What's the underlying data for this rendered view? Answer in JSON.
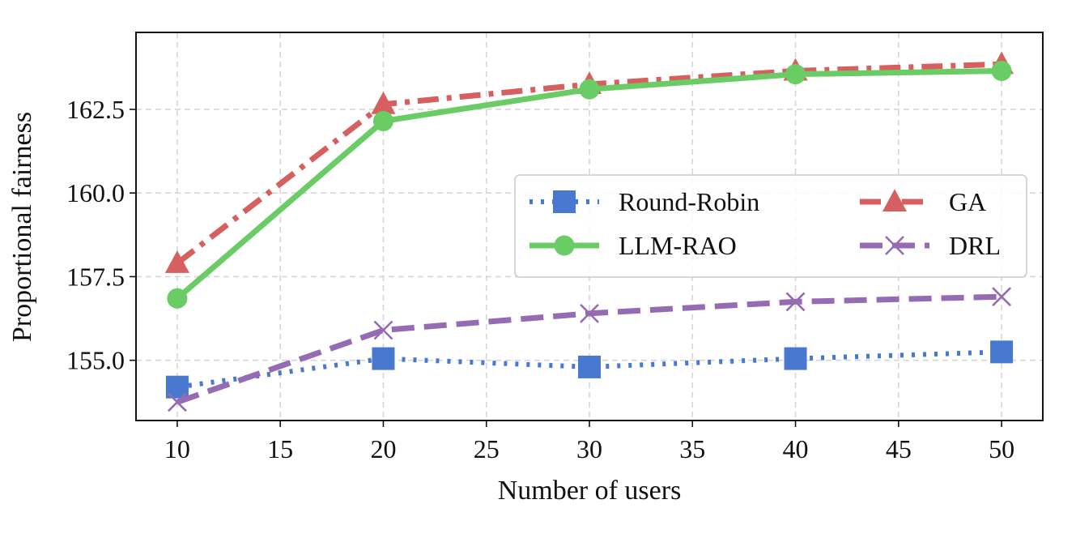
{
  "chart_data": {
    "type": "line",
    "title": "",
    "xlabel": "Number of users",
    "ylabel": "Proportional fairness",
    "x": [
      10,
      20,
      30,
      40,
      50
    ],
    "xlim": [
      8,
      52
    ],
    "ylim": [
      153.2,
      164.8
    ],
    "xticks": [
      10,
      15,
      20,
      25,
      30,
      35,
      40,
      45,
      50
    ],
    "yticks": [
      155.0,
      157.5,
      160.0,
      162.5
    ],
    "ytick_labels": [
      "155.0",
      "157.5",
      "160.0",
      "162.5"
    ],
    "grid": true,
    "legend_position": "center-right",
    "series": [
      {
        "name": "Round-Robin",
        "values": [
          154.2,
          155.05,
          154.8,
          155.05,
          155.25
        ],
        "color": "#4878d0",
        "marker": "square",
        "line_style": "dotted"
      },
      {
        "name": "GA",
        "values": [
          157.9,
          162.65,
          163.25,
          163.65,
          163.85
        ],
        "color": "#d65f5f",
        "marker": "triangle",
        "line_style": "dashdot"
      },
      {
        "name": "LLM-RAO",
        "values": [
          156.85,
          162.15,
          163.1,
          163.55,
          163.65
        ],
        "color": "#6acc64",
        "marker": "circle",
        "line_style": "solid"
      },
      {
        "name": "DRL",
        "values": [
          153.75,
          155.9,
          156.4,
          156.75,
          156.9
        ],
        "color": "#956cb4",
        "marker": "x",
        "line_style": "dashed"
      }
    ]
  }
}
